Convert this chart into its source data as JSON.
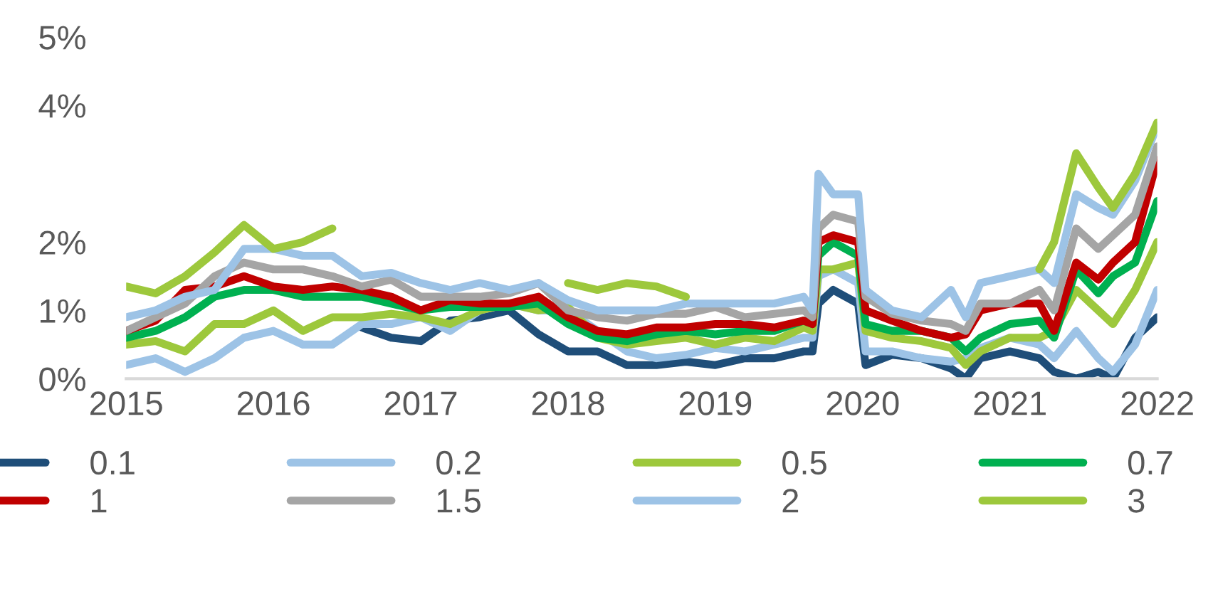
{
  "chart_data": {
    "type": "line",
    "xlim": [
      2015,
      2022
    ],
    "xticks": [
      2015,
      2016,
      2017,
      2018,
      2019,
      2020,
      2021,
      2022
    ],
    "ylim": [
      0,
      5
    ],
    "yticks": [
      {
        "value": 0,
        "label": "0%"
      },
      {
        "value": 1,
        "label": "1%"
      },
      {
        "value": 2,
        "label": "2%"
      },
      {
        "value": 4,
        "label": "4%"
      },
      {
        "value": 5,
        "label": "5%"
      }
    ],
    "x": [
      2015.0,
      2015.2,
      2015.4,
      2015.6,
      2015.8,
      2016.0,
      2016.2,
      2016.4,
      2016.6,
      2016.8,
      2017.0,
      2017.2,
      2017.4,
      2017.6,
      2017.8,
      2018.0,
      2018.2,
      2018.4,
      2018.6,
      2018.8,
      2019.0,
      2019.2,
      2019.4,
      2019.6,
      2019.66,
      2019.7,
      2019.8,
      2019.97,
      2020.02,
      2020.2,
      2020.4,
      2020.6,
      2020.7,
      2020.8,
      2021.0,
      2021.2,
      2021.3,
      2021.45,
      2021.6,
      2021.7,
      2021.85,
      2022.0
    ],
    "grid": false,
    "legend": "bottom",
    "marker": "none",
    "line_style": "solid",
    "series": [
      {
        "name": "0.1",
        "color": "#1f4e79",
        "values": [
          null,
          null,
          null,
          null,
          null,
          null,
          null,
          null,
          0.75,
          0.6,
          0.55,
          0.85,
          0.9,
          1.0,
          0.65,
          0.4,
          0.4,
          0.2,
          0.2,
          0.25,
          0.2,
          0.3,
          0.3,
          0.4,
          0.4,
          1.1,
          1.3,
          1.1,
          0.2,
          0.35,
          0.3,
          0.15,
          0.0,
          0.3,
          0.4,
          0.3,
          0.1,
          0.0,
          0.1,
          0.0,
          0.6,
          0.9
        ]
      },
      {
        "name": "0.2",
        "color": "#9dc3e6",
        "values": [
          0.2,
          0.3,
          0.1,
          0.3,
          0.6,
          0.7,
          0.5,
          0.5,
          0.8,
          0.8,
          0.9,
          0.7,
          1.0,
          1.1,
          1.0,
          1.0,
          0.7,
          0.4,
          0.3,
          0.35,
          0.45,
          0.4,
          0.5,
          0.6,
          0.6,
          1.5,
          1.6,
          1.4,
          0.4,
          0.4,
          0.3,
          0.25,
          0.3,
          0.45,
          0.6,
          0.5,
          0.3,
          0.7,
          0.3,
          0.1,
          0.5,
          1.3
        ]
      },
      {
        "name": "0.5",
        "color": "#9dc83c",
        "values": [
          0.5,
          0.55,
          0.4,
          0.8,
          0.8,
          1.0,
          0.7,
          0.9,
          0.9,
          0.95,
          0.9,
          0.8,
          1.0,
          1.1,
          1.0,
          1.05,
          0.6,
          0.5,
          0.55,
          0.6,
          0.5,
          0.6,
          0.55,
          0.75,
          0.7,
          1.6,
          1.6,
          1.7,
          0.7,
          0.6,
          0.55,
          0.45,
          0.2,
          0.4,
          0.6,
          0.6,
          0.7,
          1.3,
          1.0,
          0.8,
          1.3,
          2.0
        ]
      },
      {
        "name": "0.7",
        "color": "#00b050",
        "values": [
          0.6,
          0.7,
          0.9,
          1.2,
          1.3,
          1.3,
          1.2,
          1.2,
          1.2,
          1.1,
          1.0,
          1.05,
          1.05,
          1.05,
          1.1,
          0.8,
          0.6,
          0.55,
          0.65,
          0.7,
          0.65,
          0.7,
          0.7,
          0.85,
          0.8,
          1.8,
          2.0,
          1.8,
          0.8,
          0.7,
          0.7,
          0.6,
          0.4,
          0.6,
          0.8,
          0.85,
          0.6,
          1.6,
          1.25,
          1.5,
          1.7,
          2.6
        ]
      },
      {
        "name": "1",
        "color": "#c00000",
        "values": [
          0.7,
          0.85,
          1.3,
          1.35,
          1.5,
          1.35,
          1.3,
          1.35,
          1.3,
          1.2,
          1.0,
          1.15,
          1.1,
          1.1,
          1.2,
          0.9,
          0.7,
          0.65,
          0.75,
          0.75,
          0.8,
          0.8,
          0.75,
          0.85,
          0.8,
          2.0,
          2.1,
          2.0,
          1.0,
          0.85,
          0.7,
          0.6,
          0.65,
          1.0,
          1.1,
          1.1,
          0.7,
          1.7,
          1.45,
          1.7,
          2.0,
          3.2
        ]
      },
      {
        "name": "1.5",
        "color": "#a5a5a5",
        "values": [
          0.7,
          0.9,
          1.1,
          1.5,
          1.7,
          1.6,
          1.6,
          1.5,
          1.35,
          1.45,
          1.2,
          1.2,
          1.2,
          1.25,
          1.4,
          1.0,
          0.9,
          0.85,
          0.95,
          0.95,
          1.05,
          0.9,
          0.95,
          1.0,
          0.9,
          2.2,
          2.4,
          2.3,
          1.2,
          0.95,
          0.85,
          0.8,
          0.7,
          1.1,
          1.1,
          1.3,
          1.0,
          2.2,
          1.9,
          2.1,
          2.4,
          3.4
        ]
      },
      {
        "name": "2",
        "color": "#9dc3e6",
        "values": [
          0.9,
          1.0,
          1.2,
          1.3,
          1.9,
          1.9,
          1.8,
          1.8,
          1.5,
          1.55,
          1.4,
          1.3,
          1.4,
          1.3,
          1.4,
          1.15,
          1.0,
          1.0,
          1.0,
          1.1,
          1.1,
          1.1,
          1.1,
          1.2,
          1.0,
          3.0,
          2.7,
          2.7,
          1.3,
          1.0,
          0.9,
          1.3,
          0.9,
          1.4,
          1.5,
          1.6,
          1.4,
          2.7,
          2.5,
          2.4,
          2.9,
          3.7
        ]
      },
      {
        "name": "3",
        "color": "#9dc83c",
        "values": [
          1.35,
          1.25,
          1.5,
          1.85,
          2.25,
          1.9,
          2.0,
          2.2,
          null,
          null,
          null,
          null,
          null,
          null,
          null,
          1.4,
          1.3,
          1.4,
          1.35,
          1.2,
          null,
          null,
          null,
          null,
          null,
          null,
          null,
          null,
          null,
          null,
          null,
          null,
          null,
          null,
          null,
          1.6,
          2.0,
          3.3,
          2.8,
          2.5,
          3.0,
          3.75
        ]
      }
    ]
  }
}
